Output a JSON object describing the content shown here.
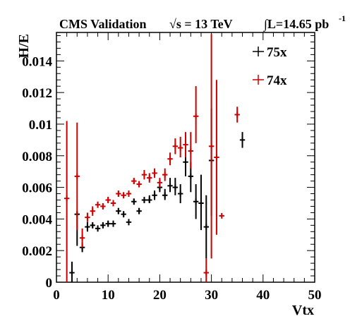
{
  "header": {
    "title": "CMS Validation",
    "energy": "√s = 13 TeV",
    "lumi": "∫L=14.65 pb",
    "lumi_exp": "-1"
  },
  "chart_data": {
    "type": "scatter",
    "title": "CMS Validation √s = 13 TeV",
    "xlabel": "Vtx",
    "ylabel": "H/E",
    "xlim": [
      0,
      50
    ],
    "ylim": [
      0,
      0.0158
    ],
    "x_ticks": [
      0,
      10,
      20,
      30,
      40,
      50
    ],
    "x_tick_labels": [
      "0",
      "10",
      "20",
      "30",
      "40",
      "50"
    ],
    "y_ticks": [
      0,
      0.002,
      0.004,
      0.006,
      0.008,
      0.01,
      0.012,
      0.014
    ],
    "y_tick_labels": [
      "0",
      "0.002",
      "0.004",
      "0.006",
      "0.008",
      "0.01",
      "0.012",
      "0.014"
    ],
    "grid": false,
    "legend_position": "top-right",
    "series": [
      {
        "name": "75x",
        "color": "#000000",
        "points": [
          {
            "x": 3,
            "y": 0.0006,
            "ylo": 0.0,
            "yhi": 0.0013
          },
          {
            "x": 4,
            "y": 0.0043,
            "ylo": 0.0023,
            "yhi": 0.0045
          },
          {
            "x": 5,
            "y": 0.0022,
            "ylo": 0.0019,
            "yhi": 0.0025
          },
          {
            "x": 6,
            "y": 0.0035,
            "ylo": 0.0032,
            "yhi": 0.0038
          },
          {
            "x": 7,
            "y": 0.0036,
            "ylo": 0.0034,
            "yhi": 0.0038
          },
          {
            "x": 8,
            "y": 0.0034,
            "ylo": 0.0032,
            "yhi": 0.0036
          },
          {
            "x": 9,
            "y": 0.0036,
            "ylo": 0.0034,
            "yhi": 0.0038
          },
          {
            "x": 10,
            "y": 0.0037,
            "ylo": 0.0035,
            "yhi": 0.0039
          },
          {
            "x": 11,
            "y": 0.0037,
            "ylo": 0.0035,
            "yhi": 0.0039
          },
          {
            "x": 12,
            "y": 0.0045,
            "ylo": 0.0043,
            "yhi": 0.0047
          },
          {
            "x": 13,
            "y": 0.0043,
            "ylo": 0.0041,
            "yhi": 0.0045
          },
          {
            "x": 14,
            "y": 0.0038,
            "ylo": 0.0036,
            "yhi": 0.004
          },
          {
            "x": 15,
            "y": 0.0051,
            "ylo": 0.0049,
            "yhi": 0.0053
          },
          {
            "x": 16,
            "y": 0.0045,
            "ylo": 0.0043,
            "yhi": 0.0047
          },
          {
            "x": 17,
            "y": 0.0052,
            "ylo": 0.005,
            "yhi": 0.0054
          },
          {
            "x": 18,
            "y": 0.0052,
            "ylo": 0.005,
            "yhi": 0.0055
          },
          {
            "x": 19,
            "y": 0.0055,
            "ylo": 0.0052,
            "yhi": 0.0058
          },
          {
            "x": 20,
            "y": 0.006,
            "ylo": 0.0057,
            "yhi": 0.0063
          },
          {
            "x": 21,
            "y": 0.0055,
            "ylo": 0.0052,
            "yhi": 0.0059
          },
          {
            "x": 22,
            "y": 0.0061,
            "ylo": 0.0057,
            "yhi": 0.0066
          },
          {
            "x": 23,
            "y": 0.006,
            "ylo": 0.0055,
            "yhi": 0.0066
          },
          {
            "x": 24,
            "y": 0.0056,
            "ylo": 0.005,
            "yhi": 0.0062
          },
          {
            "x": 25,
            "y": 0.0076,
            "ylo": 0.0067,
            "yhi": 0.0085
          },
          {
            "x": 26,
            "y": 0.0067,
            "ylo": 0.0057,
            "yhi": 0.0076
          },
          {
            "x": 27,
            "y": 0.0051,
            "ylo": 0.004,
            "yhi": 0.0062
          },
          {
            "x": 28,
            "y": 0.005,
            "ylo": 0.0033,
            "yhi": 0.0068
          },
          {
            "x": 29,
            "y": 0.0035,
            "ylo": 0.0015,
            "yhi": 0.0055
          },
          {
            "x": 30,
            "y": 0.0077,
            "ylo": 0.0042,
            "yhi": 0.011
          },
          {
            "x": 36,
            "y": 0.009,
            "ylo": 0.0085,
            "yhi": 0.0095
          }
        ]
      },
      {
        "name": "74x",
        "color": "#cc0000",
        "points": [
          {
            "x": 2,
            "y": 0.0053,
            "ylo": 0.0,
            "yhi": 0.0102
          },
          {
            "x": 4,
            "y": 0.0067,
            "ylo": 0.0033,
            "yhi": 0.0101
          },
          {
            "x": 5,
            "y": 0.0028,
            "ylo": 0.0022,
            "yhi": 0.0034
          },
          {
            "x": 6,
            "y": 0.0041,
            "ylo": 0.0038,
            "yhi": 0.0044
          },
          {
            "x": 7,
            "y": 0.0045,
            "ylo": 0.0042,
            "yhi": 0.0048
          },
          {
            "x": 8,
            "y": 0.0049,
            "ylo": 0.0047,
            "yhi": 0.0051
          },
          {
            "x": 9,
            "y": 0.0048,
            "ylo": 0.0046,
            "yhi": 0.005
          },
          {
            "x": 10,
            "y": 0.0052,
            "ylo": 0.005,
            "yhi": 0.0054
          },
          {
            "x": 11,
            "y": 0.005,
            "ylo": 0.0048,
            "yhi": 0.0052
          },
          {
            "x": 12,
            "y": 0.0056,
            "ylo": 0.0054,
            "yhi": 0.0058
          },
          {
            "x": 13,
            "y": 0.0055,
            "ylo": 0.0053,
            "yhi": 0.0057
          },
          {
            "x": 14,
            "y": 0.0056,
            "ylo": 0.0054,
            "yhi": 0.0058
          },
          {
            "x": 15,
            "y": 0.0064,
            "ylo": 0.0062,
            "yhi": 0.0066
          },
          {
            "x": 16,
            "y": 0.0062,
            "ylo": 0.006,
            "yhi": 0.0064
          },
          {
            "x": 17,
            "y": 0.0068,
            "ylo": 0.0065,
            "yhi": 0.0071
          },
          {
            "x": 18,
            "y": 0.0066,
            "ylo": 0.0063,
            "yhi": 0.0069
          },
          {
            "x": 19,
            "y": 0.0069,
            "ylo": 0.0066,
            "yhi": 0.0072
          },
          {
            "x": 20,
            "y": 0.0063,
            "ylo": 0.006,
            "yhi": 0.0066
          },
          {
            "x": 21,
            "y": 0.0068,
            "ylo": 0.0064,
            "yhi": 0.0072
          },
          {
            "x": 22,
            "y": 0.0078,
            "ylo": 0.0074,
            "yhi": 0.0082
          },
          {
            "x": 23,
            "y": 0.0086,
            "ylo": 0.0081,
            "yhi": 0.0091
          },
          {
            "x": 24,
            "y": 0.0085,
            "ylo": 0.0079,
            "yhi": 0.0092
          },
          {
            "x": 25,
            "y": 0.0087,
            "ylo": 0.0079,
            "yhi": 0.0095
          },
          {
            "x": 26,
            "y": 0.0083,
            "ylo": 0.0072,
            "yhi": 0.0095
          },
          {
            "x": 27,
            "y": 0.0105,
            "ylo": 0.0088,
            "yhi": 0.0124
          },
          {
            "x": 29,
            "y": 0.0006,
            "ylo": 0.0,
            "yhi": 0.0015
          },
          {
            "x": 30,
            "y": 0.0086,
            "ylo": 0.0015,
            "yhi": 0.0157
          },
          {
            "x": 31,
            "y": 0.0079,
            "ylo": 0.003,
            "yhi": 0.0128
          },
          {
            "x": 32,
            "y": 0.0042,
            "ylo": 0.0042,
            "yhi": 0.0042
          },
          {
            "x": 35,
            "y": 0.0106,
            "ylo": 0.0101,
            "yhi": 0.0111
          }
        ]
      }
    ]
  }
}
